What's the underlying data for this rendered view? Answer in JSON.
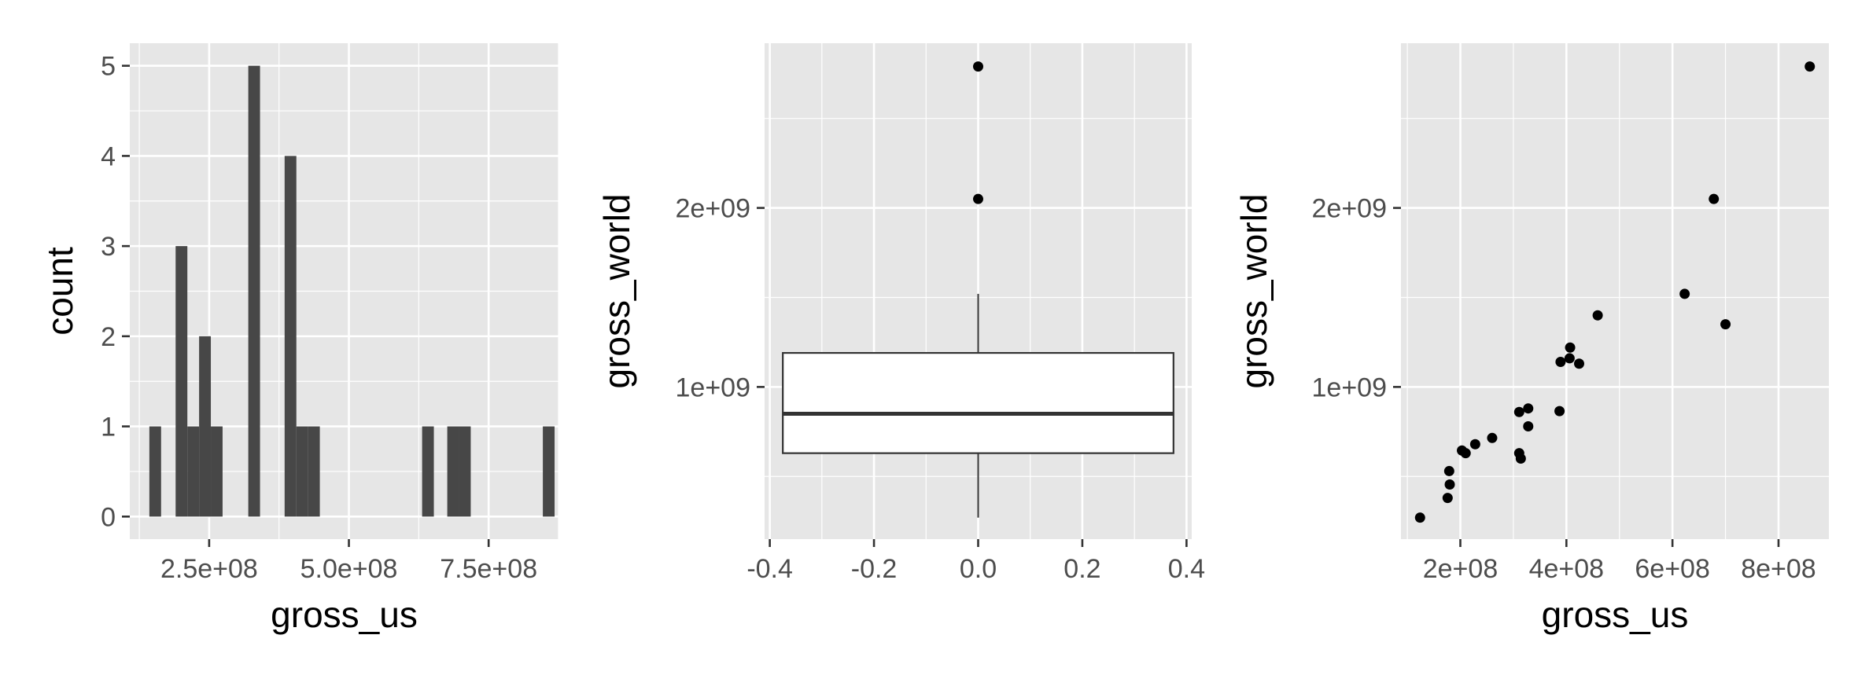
{
  "colors": {
    "panel_bg": "#e6e6e6",
    "grid": "#ffffff",
    "bar_fill": "#474747",
    "point": "#000000",
    "box_fill": "#ffffff",
    "box_line": "#333333",
    "tick_text": "#4d4d4d",
    "axis_title": "#000000"
  },
  "chart_data": [
    {
      "type": "histogram",
      "xlabel": "gross_us",
      "ylabel": "count",
      "xlim": [
        108000000,
        875000000
      ],
      "ylim": [
        -0.25,
        5.25
      ],
      "x_ticks": [
        250000000,
        500000000,
        750000000
      ],
      "x_tick_labels": [
        "2.5e+08",
        "5.0e+08",
        "7.5e+08"
      ],
      "y_ticks": [
        0,
        1,
        2,
        3,
        4,
        5
      ],
      "y_tick_labels": [
        "0",
        "1",
        "2",
        "3",
        "4",
        "5"
      ],
      "bins": [
        {
          "x0": 143000000,
          "x1": 164000000,
          "count": 1
        },
        {
          "x0": 190000000,
          "x1": 211000000,
          "count": 3
        },
        {
          "x0": 211000000,
          "x1": 232000000,
          "count": 1
        },
        {
          "x0": 232000000,
          "x1": 253000000,
          "count": 2
        },
        {
          "x0": 253000000,
          "x1": 274000000,
          "count": 1
        },
        {
          "x0": 320000000,
          "x1": 341000000,
          "count": 5
        },
        {
          "x0": 385000000,
          "x1": 406000000,
          "count": 4
        },
        {
          "x0": 406000000,
          "x1": 427000000,
          "count": 1
        },
        {
          "x0": 427000000,
          "x1": 448000000,
          "count": 1
        },
        {
          "x0": 631000000,
          "x1": 652000000,
          "count": 1
        },
        {
          "x0": 676000000,
          "x1": 697000000,
          "count": 1
        },
        {
          "x0": 697000000,
          "x1": 718000000,
          "count": 1
        },
        {
          "x0": 847000000,
          "x1": 868000000,
          "count": 1
        }
      ]
    },
    {
      "type": "box",
      "xlabel": "",
      "ylabel": "gross_world",
      "xlim": [
        -0.41,
        0.41
      ],
      "ylim": [
        150000000,
        2920000000
      ],
      "x_ticks": [
        -0.4,
        -0.2,
        0.0,
        0.2,
        0.4
      ],
      "x_tick_labels": [
        "-0.4",
        "-0.2",
        "0.0",
        "0.2",
        "0.4"
      ],
      "y_ticks": [
        1000000000,
        2000000000
      ],
      "y_tick_labels": [
        "1e+09",
        "2e+09"
      ],
      "box": {
        "x": 0.0,
        "half_width": 0.375,
        "lower_whisker": 270000000,
        "q1": 630000000,
        "median": 850000000,
        "q3": 1190000000,
        "upper_whisker": 1520000000,
        "outliers": [
          2050000000,
          2790000000
        ]
      }
    },
    {
      "type": "scatter",
      "xlabel": "gross_us",
      "ylabel": "gross_world",
      "xlim": [
        88000000,
        895000000
      ],
      "ylim": [
        150000000,
        2920000000
      ],
      "x_ticks": [
        200000000,
        400000000,
        600000000,
        800000000
      ],
      "x_tick_labels": [
        "2e+08",
        "4e+08",
        "6e+08",
        "8e+08"
      ],
      "y_ticks": [
        1000000000,
        2000000000
      ],
      "y_tick_labels": [
        "1e+09",
        "2e+09"
      ],
      "points": [
        {
          "x": 124000000,
          "y": 270000000
        },
        {
          "x": 176000000,
          "y": 380000000
        },
        {
          "x": 180000000,
          "y": 455000000
        },
        {
          "x": 179000000,
          "y": 530000000
        },
        {
          "x": 203000000,
          "y": 645000000
        },
        {
          "x": 210000000,
          "y": 630000000
        },
        {
          "x": 228000000,
          "y": 680000000
        },
        {
          "x": 260000000,
          "y": 715000000
        },
        {
          "x": 311000000,
          "y": 630000000
        },
        {
          "x": 314000000,
          "y": 600000000
        },
        {
          "x": 311000000,
          "y": 860000000
        },
        {
          "x": 328000000,
          "y": 880000000
        },
        {
          "x": 328000000,
          "y": 780000000
        },
        {
          "x": 387000000,
          "y": 865000000
        },
        {
          "x": 389000000,
          "y": 1140000000
        },
        {
          "x": 406000000,
          "y": 1160000000
        },
        {
          "x": 407000000,
          "y": 1220000000
        },
        {
          "x": 424000000,
          "y": 1130000000
        },
        {
          "x": 459000000,
          "y": 1400000000
        },
        {
          "x": 623000000,
          "y": 1520000000
        },
        {
          "x": 678000000,
          "y": 2050000000
        },
        {
          "x": 700000000,
          "y": 1350000000
        },
        {
          "x": 859000000,
          "y": 2790000000
        }
      ]
    }
  ]
}
